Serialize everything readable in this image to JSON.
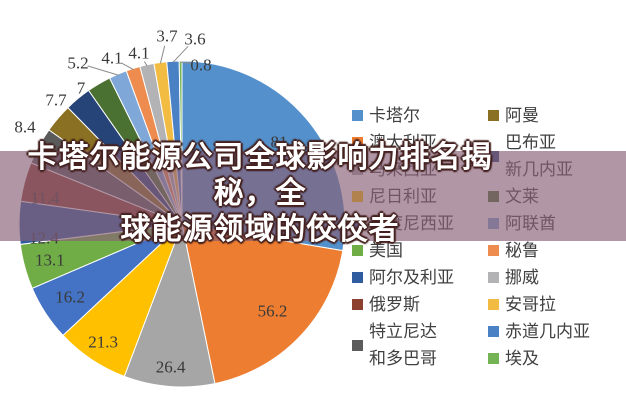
{
  "banner": {
    "line1": "卡塔尔能源公司全球影响力排名揭秘，全",
    "line2": "球能源领域的佼佼者",
    "overlay_rgba": "rgba(137,95,118,0.66)"
  },
  "chart_data": {
    "type": "pie",
    "title": "",
    "legend_position": "right",
    "start_angle_deg": 0,
    "direction": "clockwise",
    "total": 293.4,
    "categories": [
      "卡塔尔",
      "澳大利亚",
      "马来西亚",
      "尼日利亚",
      "印度尼西亚",
      "美国",
      "阿尔及利亚",
      "俄罗斯",
      "特立尼达和多巴哥",
      "阿曼",
      "巴布亚新几内亚",
      "文莱",
      "阿联酋",
      "秘鲁",
      "挪威",
      "安哥拉",
      "赤道几内亚",
      "埃及"
    ],
    "values": [
      81,
      56.2,
      26.4,
      21.3,
      16.2,
      13.1,
      12.4,
      11.4,
      10.8,
      8.4,
      7.7,
      7,
      5.2,
      4.1,
      4.1,
      3.7,
      3.6,
      0.8
    ],
    "slices": [
      {
        "name": "卡塔尔",
        "value": 81,
        "label": "81",
        "color": "#5490CB",
        "legend_lines": [
          "卡塔尔"
        ]
      },
      {
        "name": "澳大利亚",
        "value": 56.2,
        "label": "56.2",
        "color": "#ED7D31",
        "legend_lines": [
          "澳大利亚"
        ]
      },
      {
        "name": "马来西亚",
        "value": 26.4,
        "label": "26.4",
        "color": "#A6A6A6",
        "legend_lines": [
          "马来西亚"
        ]
      },
      {
        "name": "尼日利亚",
        "value": 21.3,
        "label": "21.3",
        "color": "#FFC000",
        "legend_lines": [
          "尼日利亚"
        ]
      },
      {
        "name": "印度尼西亚",
        "value": 16.2,
        "label": "16.2",
        "color": "#4472C4",
        "legend_lines": [
          "印度尼西亚"
        ]
      },
      {
        "name": "美国",
        "value": 13.1,
        "label": "13.1",
        "color": "#70AD47",
        "legend_lines": [
          "美国"
        ]
      },
      {
        "name": "阿尔及利亚",
        "value": 12.4,
        "label": "12.4",
        "color": "#2E5C9E",
        "legend_lines": [
          "阿尔及利亚"
        ]
      },
      {
        "name": "俄罗斯",
        "value": 11.4,
        "label": "11.4",
        "color": "#8E4030",
        "legend_lines": [
          "俄罗斯"
        ]
      },
      {
        "name": "特立尼达和多巴哥",
        "value": 10.8,
        "label": "10.8",
        "color": "#5B5B5B",
        "legend_lines": [
          "特立尼达",
          "和多巴哥"
        ]
      },
      {
        "name": "阿曼",
        "value": 8.4,
        "label": "8.4",
        "color": "#8A7022",
        "legend_lines": [
          "阿曼"
        ]
      },
      {
        "name": "巴布亚新几内亚",
        "value": 7.7,
        "label": "7.7",
        "color": "#264478",
        "legend_lines": [
          "巴布亚",
          "新几内亚"
        ]
      },
      {
        "name": "文莱",
        "value": 7,
        "label": "7",
        "color": "#4A7032",
        "legend_lines": [
          "文莱"
        ]
      },
      {
        "name": "阿联酋",
        "value": 5.2,
        "label": "5.2",
        "color": "#7FA7D7",
        "legend_lines": [
          "阿联酋"
        ]
      },
      {
        "name": "秘鲁",
        "value": 4.1,
        "label": "4.1",
        "color": "#ED8C4E",
        "legend_lines": [
          "秘鲁"
        ]
      },
      {
        "name": "挪威",
        "value": 4.1,
        "label": "4.1",
        "color": "#B3B3B5",
        "legend_lines": [
          "挪威"
        ]
      },
      {
        "name": "安哥拉",
        "value": 3.7,
        "label": "3.7",
        "color": "#F2BC42",
        "legend_lines": [
          "安哥拉"
        ]
      },
      {
        "name": "赤道几内亚",
        "value": 3.6,
        "label": "3.6",
        "color": "#4A80C4",
        "legend_lines": [
          "赤道几内亚"
        ]
      },
      {
        "name": "埃及",
        "value": 0.8,
        "label": "0.8",
        "color": "#75B454",
        "legend_lines": [
          "埃及"
        ]
      }
    ]
  }
}
